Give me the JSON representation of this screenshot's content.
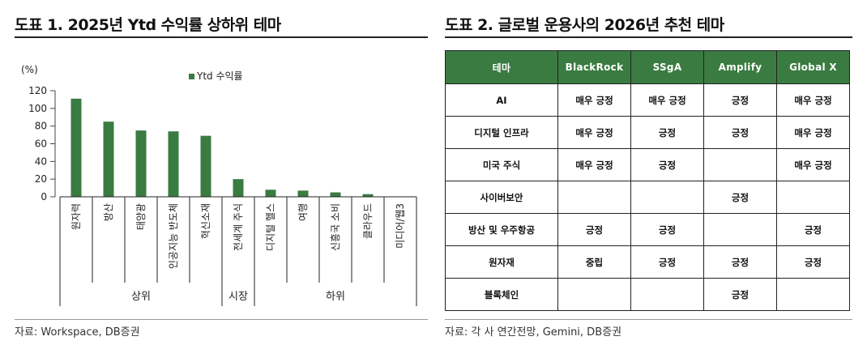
{
  "left": {
    "title": "도표 1. 2025년 Ytd 수익률 상하위 테마",
    "source": "자료: Workspace, DB증권"
  },
  "right": {
    "title": "도표 2. 글로벌 운용사의 2026년 추천 테마",
    "source": "자료: 각 사 연간전망, Gemini, DB증권",
    "headers": [
      "테마",
      "BlackRock",
      "SSgA",
      "Amplify",
      "Global X"
    ],
    "rows": [
      [
        "AI",
        "매우 긍정",
        "매우 긍정",
        "긍정",
        "매우 긍정"
      ],
      [
        "디지털 인프라",
        "매우 긍정",
        "긍정",
        "긍정",
        "매우 긍정"
      ],
      [
        "미국 주식",
        "매우 긍정",
        "긍정",
        "",
        "매우 긍정"
      ],
      [
        "사이버보안",
        "",
        "",
        "긍정",
        ""
      ],
      [
        "방산 및 우주항공",
        "긍정",
        "긍정",
        "",
        "긍정"
      ],
      [
        "원자재",
        "중립",
        "긍정",
        "긍정",
        "긍정"
      ],
      [
        "블록체인",
        "",
        "",
        "긍정",
        ""
      ]
    ]
  },
  "chart_data": {
    "type": "bar",
    "unit_label": "(%)",
    "legend": "Ytd 수익률",
    "series_color": "#3a7b41",
    "categories": [
      "원자력",
      "방산",
      "태양광",
      "인공지능 반도체",
      "혁신소재",
      "전세계 주식",
      "디지털 헬스",
      "여행",
      "신흥국 소비",
      "클라우드",
      "미디어/웹3"
    ],
    "values": [
      111,
      85,
      75,
      74,
      69,
      20,
      8,
      7,
      5,
      3,
      0
    ],
    "ylim": [
      0,
      120
    ],
    "yticks": [
      0,
      20,
      40,
      60,
      80,
      100,
      120
    ],
    "groups": [
      {
        "label": "상위",
        "count": 5
      },
      {
        "label": "시장",
        "count": 1
      },
      {
        "label": "하위",
        "count": 5
      }
    ]
  }
}
